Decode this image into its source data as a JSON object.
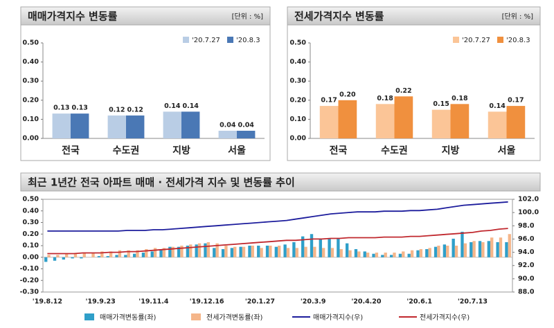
{
  "chart_data": [
    {
      "type": "bar",
      "title": "매매가격지수 변동률",
      "unit_note": "[단위 : %]",
      "categories": [
        "전국",
        "수도권",
        "지방",
        "서울"
      ],
      "series": [
        {
          "name": "'20.7.27",
          "color": "#b9cde5",
          "values": [
            0.13,
            0.12,
            0.14,
            0.04
          ],
          "value_labels": [
            "0.13",
            "0.12",
            "0.14",
            "0.04"
          ]
        },
        {
          "name": "'20.8.3",
          "color": "#4a78b5",
          "values": [
            0.13,
            0.12,
            0.14,
            0.04
          ],
          "value_labels": [
            "0.13",
            "0.12",
            "0.14",
            "0.04"
          ]
        }
      ],
      "ylim": [
        0,
        0.5
      ],
      "yticks": [
        {
          "value": 0,
          "label": "0.00"
        },
        {
          "value": 0.1,
          "label": "0.10"
        },
        {
          "value": 0.2,
          "label": "0.20"
        },
        {
          "value": 0.3,
          "label": "0.30"
        },
        {
          "value": 0.4,
          "label": "0.40"
        },
        {
          "value": 0.5,
          "label": "0.50"
        }
      ],
      "grid": false,
      "legend": "top-right"
    },
    {
      "type": "bar",
      "title": "전세가격지수 변동률",
      "unit_note": "[단위 : %]",
      "categories": [
        "전국",
        "수도권",
        "지방",
        "서울"
      ],
      "series": [
        {
          "name": "'20.7.27",
          "color": "#fbc597",
          "values": [
            0.17,
            0.18,
            0.15,
            0.14
          ],
          "value_labels": [
            "0.17",
            "0.18",
            "0.15",
            "0.14"
          ]
        },
        {
          "name": "'20.8.3",
          "color": "#f0903e",
          "values": [
            0.2,
            0.22,
            0.18,
            0.17
          ],
          "value_labels": [
            "0.20",
            "0.22",
            "0.18",
            "0.17"
          ]
        }
      ],
      "ylim": [
        0,
        0.5
      ],
      "yticks": [
        {
          "value": 0,
          "label": "0.00"
        },
        {
          "value": 0.1,
          "label": "0.10"
        },
        {
          "value": 0.2,
          "label": "0.20"
        },
        {
          "value": 0.3,
          "label": "0.30"
        },
        {
          "value": 0.4,
          "label": "0.40"
        },
        {
          "value": 0.5,
          "label": "0.50"
        }
      ],
      "grid": false,
      "legend": "top-right"
    },
    {
      "type": "bar-line",
      "title": "최근 1년간 전국 아파트 매매 · 전세가격 지수 및 변동률 추이",
      "categories": [
        "'19.8.12",
        null,
        null,
        null,
        null,
        null,
        "'19.9.23",
        null,
        null,
        null,
        null,
        null,
        "'19.11.4",
        null,
        null,
        null,
        null,
        null,
        "'19.12.16",
        null,
        null,
        null,
        null,
        null,
        "'20.1.27",
        null,
        null,
        null,
        null,
        null,
        "'20.3.9",
        null,
        null,
        null,
        null,
        null,
        "'20.4.20",
        null,
        null,
        null,
        null,
        null,
        "'20.6.1",
        null,
        null,
        null,
        null,
        null,
        "'20.7.13",
        null,
        null,
        null,
        null
      ],
      "series": [
        {
          "name": "매매가격변동률(좌)",
          "kind": "bar",
          "color": "#2f9fc9",
          "values": [
            -0.04,
            -0.03,
            -0.02,
            -0.01,
            -0.01,
            0.0,
            0.01,
            0.01,
            0.02,
            0.02,
            0.03,
            0.04,
            0.05,
            0.07,
            0.09,
            0.09,
            0.1,
            0.11,
            0.12,
            0.08,
            0.07,
            0.08,
            0.09,
            0.1,
            0.1,
            0.1,
            0.09,
            0.11,
            0.13,
            0.18,
            0.2,
            0.16,
            0.16,
            0.16,
            0.12,
            0.07,
            0.05,
            0.03,
            0.02,
            0.02,
            0.03,
            0.03,
            0.06,
            0.07,
            0.09,
            0.11,
            0.16,
            0.22,
            0.13,
            0.14,
            0.14,
            0.13,
            0.13
          ]
        },
        {
          "name": "전세가격변동률(좌)",
          "kind": "bar",
          "color": "#f5b68a",
          "values": [
            0.02,
            0.02,
            0.03,
            0.03,
            0.04,
            0.04,
            0.05,
            0.05,
            0.06,
            0.06,
            0.06,
            0.07,
            0.08,
            0.08,
            0.09,
            0.1,
            0.11,
            0.12,
            0.13,
            0.12,
            0.1,
            0.09,
            0.09,
            0.1,
            0.08,
            0.1,
            0.1,
            0.08,
            0.08,
            0.09,
            0.09,
            0.08,
            0.08,
            0.07,
            0.06,
            0.05,
            0.04,
            0.04,
            0.04,
            0.04,
            0.05,
            0.06,
            0.07,
            0.08,
            0.1,
            0.1,
            0.1,
            0.12,
            0.14,
            0.13,
            0.17,
            0.17,
            0.2
          ]
        },
        {
          "name": "매매가격지수(우)",
          "kind": "line",
          "axis": "y2",
          "color": "#1c1c9c",
          "values": [
            97.2,
            97.2,
            97.2,
            97.2,
            97.2,
            97.2,
            97.2,
            97.2,
            97.2,
            97.3,
            97.3,
            97.3,
            97.4,
            97.4,
            97.5,
            97.6,
            97.7,
            97.8,
            97.9,
            98.0,
            98.1,
            98.2,
            98.3,
            98.4,
            98.5,
            98.6,
            98.7,
            98.8,
            99.0,
            99.2,
            99.4,
            99.6,
            99.8,
            99.9,
            100.0,
            100.1,
            100.1,
            100.1,
            100.2,
            100.2,
            100.2,
            100.3,
            100.3,
            100.4,
            100.5,
            100.7,
            100.9,
            101.1,
            101.2,
            101.3,
            101.4,
            101.5,
            101.6
          ]
        },
        {
          "name": "전세가격지수(우)",
          "kind": "line",
          "axis": "y2",
          "color": "#c0272d",
          "values": [
            93.8,
            93.8,
            93.8,
            93.8,
            93.9,
            93.9,
            93.9,
            94.0,
            94.0,
            94.1,
            94.1,
            94.2,
            94.3,
            94.4,
            94.5,
            94.6,
            94.7,
            94.8,
            94.9,
            95.0,
            95.1,
            95.2,
            95.3,
            95.4,
            95.5,
            95.6,
            95.7,
            95.8,
            95.8,
            95.9,
            96.0,
            96.0,
            96.1,
            96.1,
            96.2,
            96.2,
            96.2,
            96.2,
            96.3,
            96.3,
            96.3,
            96.4,
            96.4,
            96.5,
            96.6,
            96.7,
            96.8,
            96.9,
            97.0,
            97.2,
            97.3,
            97.5,
            97.6
          ]
        }
      ],
      "ylim": [
        -0.3,
        0.5
      ],
      "yticks": [
        {
          "value": -0.3,
          "label": "-0.30"
        },
        {
          "value": -0.2,
          "label": "-0.20"
        },
        {
          "value": -0.1,
          "label": "-0.10"
        },
        {
          "value": 0,
          "label": "0.00"
        },
        {
          "value": 0.1,
          "label": "0.10"
        },
        {
          "value": 0.2,
          "label": "0.20"
        },
        {
          "value": 0.3,
          "label": "0.30"
        },
        {
          "value": 0.4,
          "label": "0.40"
        },
        {
          "value": 0.5,
          "label": "0.50"
        }
      ],
      "y2lim": [
        88,
        102
      ],
      "y2ticks": [
        {
          "value": 88,
          "label": "88.0"
        },
        {
          "value": 90,
          "label": "90.0"
        },
        {
          "value": 92,
          "label": "92.0"
        },
        {
          "value": 94,
          "label": "94.0"
        },
        {
          "value": 96,
          "label": "96.0"
        },
        {
          "value": 98,
          "label": "98.0"
        },
        {
          "value": 100,
          "label": "100.0"
        },
        {
          "value": 102,
          "label": "102.0"
        }
      ],
      "grid": false,
      "legend": "bottom"
    }
  ]
}
